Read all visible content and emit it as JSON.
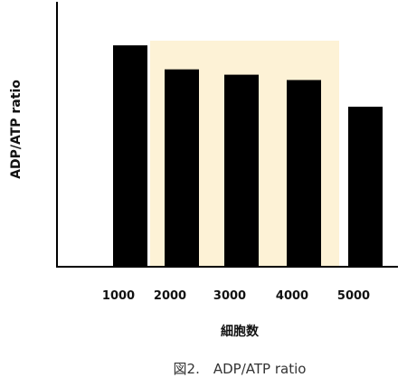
{
  "chart_data": {
    "type": "bar",
    "title": "",
    "xlabel": "細胞数",
    "ylabel": "ADP/ATP ratio",
    "categories": [
      "1000",
      "2000",
      "3000",
      "4000",
      "5000"
    ],
    "values": [
      0.83,
      0.74,
      0.72,
      0.7,
      0.6
    ],
    "ylim": [
      0,
      1
    ],
    "grid": false,
    "highlight": {
      "from": "2000",
      "to": "4000",
      "color": "#fdf2d6"
    },
    "bar_color": "#000000"
  },
  "caption": "図2.　ADP/ATP ratio"
}
